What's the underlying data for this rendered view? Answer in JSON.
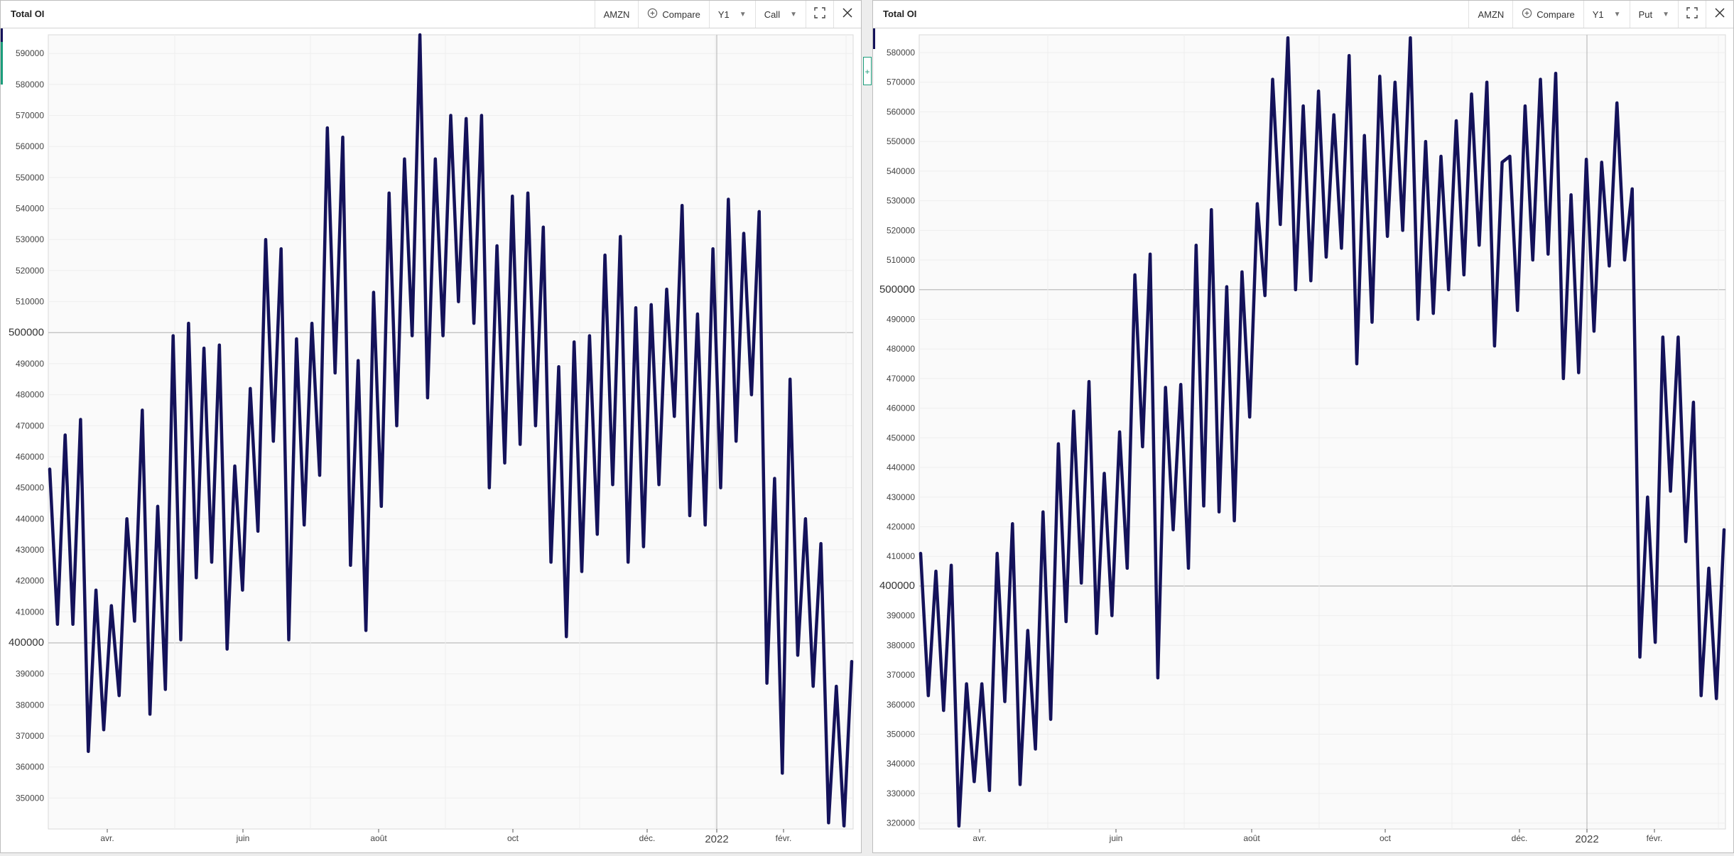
{
  "panels": [
    {
      "title": "Total OI",
      "ticker": "AMZN",
      "compare_label": "Compare",
      "period_label": "Y1",
      "type_label": "Call",
      "icons": {
        "compare": "plus-circle-icon",
        "period": "chevron-down-icon",
        "type": "chevron-down-icon",
        "expand": "fullscreen-icon",
        "close": "close-icon"
      }
    },
    {
      "title": "Total OI",
      "ticker": "AMZN",
      "compare_label": "Compare",
      "period_label": "Y1",
      "type_label": "Put",
      "icons": {
        "compare": "plus-circle-icon",
        "period": "chevron-down-icon",
        "type": "chevron-down-icon",
        "expand": "fullscreen-icon",
        "close": "close-icon"
      }
    }
  ],
  "colors": {
    "line": "#14125a",
    "accent_left": "#1b9d7b",
    "accent_top": "#14125a",
    "grid_major": "#bcbcbc",
    "grid_minor": "#eeeeee",
    "plot_bg": "#fafafa"
  },
  "chart_data": [
    {
      "type": "line",
      "title": "Total OI",
      "xlabel": "",
      "ylabel": "",
      "ylim": [
        340000,
        596000
      ],
      "yticks": [
        350000,
        360000,
        370000,
        380000,
        390000,
        400000,
        410000,
        420000,
        430000,
        440000,
        450000,
        460000,
        470000,
        480000,
        490000,
        500000,
        510000,
        520000,
        530000,
        540000,
        550000,
        560000,
        570000,
        580000,
        590000
      ],
      "major_yticks": [
        400000,
        500000
      ],
      "xticks": [
        "avr.",
        "juin",
        "août",
        "oct",
        "déc.",
        "2022",
        "févr."
      ],
      "grid": true,
      "series": [
        {
          "values": [
            456000,
            406000,
            467000,
            406000,
            472000,
            365000,
            417000,
            372000,
            412000,
            383000,
            440000,
            407000,
            475000,
            377000,
            444000,
            385000,
            499000,
            401000,
            503000,
            421000,
            495000,
            426000,
            496000,
            398000,
            457000,
            417000,
            482000,
            436000,
            530000,
            465000,
            527000,
            401000,
            498000,
            438000,
            503000,
            454000,
            566000,
            487000,
            563000,
            425000,
            491000,
            404000,
            513000,
            444000,
            545000,
            470000,
            556000,
            499000,
            596000,
            479000,
            556000,
            499000,
            570000,
            510000,
            569000,
            503000,
            570000,
            450000,
            528000,
            458000,
            544000,
            464000,
            545000,
            470000,
            534000,
            426000,
            489000,
            402000,
            497000,
            423000,
            499000,
            435000,
            525000,
            451000,
            531000,
            426000,
            508000,
            431000,
            509000,
            451000,
            514000,
            473000,
            541000,
            441000,
            506000,
            438000,
            527000,
            450000,
            543000,
            465000,
            532000,
            480000,
            539000,
            387000,
            453000,
            358000,
            485000,
            396000,
            440000,
            386000,
            432000,
            342000,
            386000,
            341000,
            394000
          ]
        }
      ]
    },
    {
      "type": "line",
      "title": "Total OI",
      "xlabel": "",
      "ylabel": "",
      "ylim": [
        318000,
        586000
      ],
      "yticks": [
        320000,
        330000,
        340000,
        350000,
        360000,
        370000,
        380000,
        390000,
        400000,
        410000,
        420000,
        430000,
        440000,
        450000,
        460000,
        470000,
        480000,
        490000,
        500000,
        510000,
        520000,
        530000,
        540000,
        550000,
        560000,
        570000,
        580000
      ],
      "major_yticks": [
        400000,
        500000
      ],
      "xticks": [
        "avr.",
        "juin",
        "août",
        "oct",
        "déc.",
        "2022",
        "févr."
      ],
      "grid": true,
      "series": [
        {
          "values": [
            411000,
            363000,
            405000,
            358000,
            407000,
            319000,
            367000,
            334000,
            367000,
            331000,
            411000,
            361000,
            421000,
            333000,
            385000,
            345000,
            425000,
            355000,
            448000,
            388000,
            459000,
            401000,
            469000,
            384000,
            438000,
            390000,
            452000,
            406000,
            505000,
            447000,
            512000,
            369000,
            467000,
            419000,
            468000,
            406000,
            515000,
            427000,
            527000,
            425000,
            501000,
            422000,
            506000,
            457000,
            529000,
            498000,
            571000,
            522000,
            585000,
            500000,
            562000,
            503000,
            567000,
            511000,
            559000,
            514000,
            579000,
            475000,
            552000,
            489000,
            572000,
            518000,
            570000,
            520000,
            585000,
            490000,
            550000,
            492000,
            545000,
            500000,
            557000,
            505000,
            566000,
            515000,
            570000,
            481000,
            543000,
            545000,
            493000,
            562000,
            510000,
            571000,
            512000,
            573000,
            470000,
            532000,
            472000,
            544000,
            486000,
            543000,
            508000,
            563000,
            510000,
            534000,
            376000,
            430000,
            381000,
            484000,
            432000,
            484000,
            415000,
            462000,
            363000,
            406000,
            362000,
            419000
          ]
        }
      ]
    }
  ]
}
